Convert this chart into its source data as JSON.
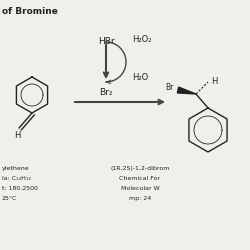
{
  "title": "of Bromine",
  "bg_color": "#f0f0eb",
  "text_color": "#222222",
  "arrow_color": "#444444",
  "reagent_hbr": "HBr",
  "reagent_h2o2": "H₂O₂",
  "reagent_h2o": "H₂O",
  "reagent_br2": "Br₂",
  "left_label1": "ylethene",
  "left_label2": "la: C₁₄H₁₂",
  "left_label3": "t: 180.2500",
  "left_label4": "25°C",
  "right_label1": "(1R,2S)-1,2-dibrom",
  "right_label2": "Chemical For",
  "right_label3": "Molecular W",
  "right_label4": "mp: 24"
}
